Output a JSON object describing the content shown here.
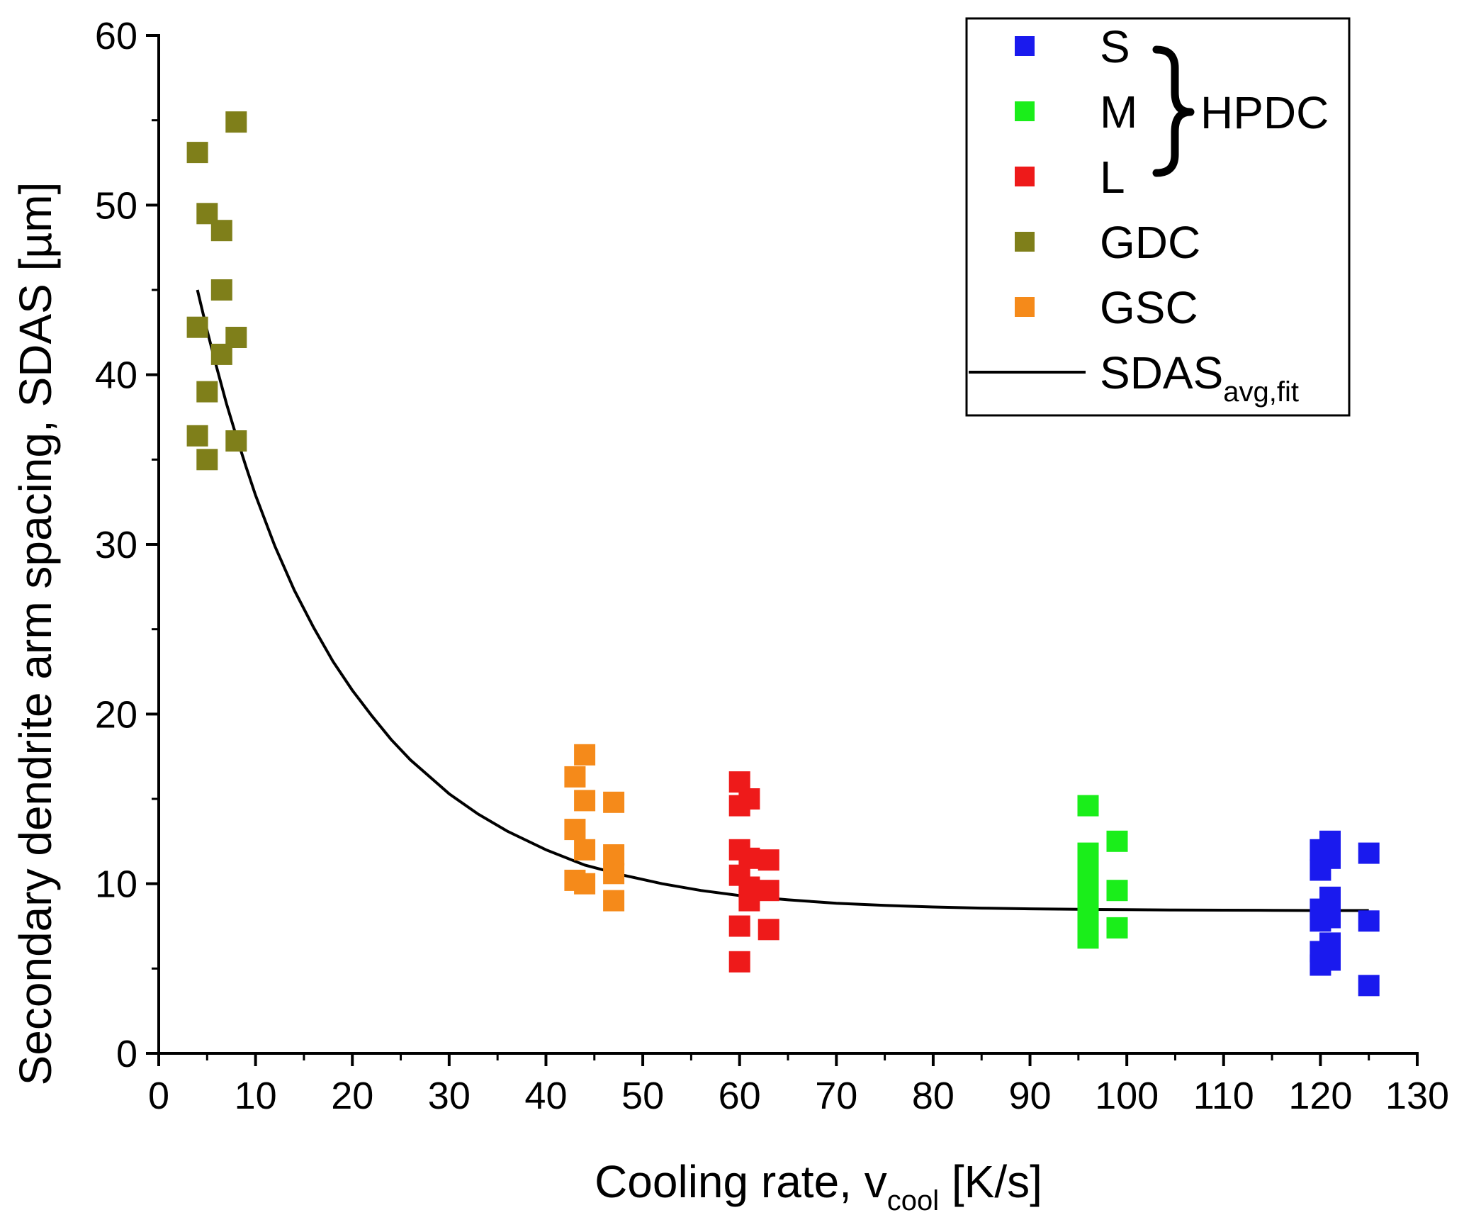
{
  "chart_data": {
    "type": "scatter",
    "title": "",
    "xlabel": {
      "main": "Cooling rate, v",
      "sub": "cool",
      "unit": " [K/s]"
    },
    "ylabel": "Secondary dendrite arm spacing, SDAS [µm]",
    "xlim": [
      0,
      130
    ],
    "ylim": [
      0,
      60
    ],
    "x_ticks": [
      0,
      10,
      20,
      30,
      40,
      50,
      60,
      70,
      80,
      90,
      100,
      110,
      120,
      130
    ],
    "y_ticks": [
      0,
      10,
      20,
      30,
      40,
      50,
      60
    ],
    "x_tick_labels": [
      "0",
      "10",
      "20",
      "30",
      "40",
      "50",
      "60",
      "70",
      "80",
      "90",
      "100",
      "110",
      "120",
      "130"
    ],
    "y_tick_labels": [
      "0",
      "10",
      "20",
      "30",
      "40",
      "50",
      "60"
    ],
    "grid": false,
    "legend_position": "top-right",
    "series": [
      {
        "name": "S",
        "color": "#1a1aee",
        "marker": "square",
        "points": [
          [
            120,
            12.0
          ],
          [
            121,
            12.5
          ],
          [
            121,
            11.5
          ],
          [
            120,
            10.8
          ],
          [
            121,
            9.2
          ],
          [
            120,
            8.5
          ],
          [
            121,
            8.0
          ],
          [
            120,
            7.8
          ],
          [
            121,
            6.5
          ],
          [
            120,
            6.0
          ],
          [
            121,
            5.5
          ],
          [
            120,
            5.2
          ],
          [
            125,
            11.8
          ],
          [
            125,
            7.8
          ],
          [
            125,
            4.0
          ]
        ]
      },
      {
        "name": "M",
        "color": "#1aee1a",
        "marker": "square",
        "points": [
          [
            96,
            14.6
          ],
          [
            96,
            11.8
          ],
          [
            96,
            10.8
          ],
          [
            96,
            9.8
          ],
          [
            96,
            8.8
          ],
          [
            96,
            7.8
          ],
          [
            96,
            6.8
          ],
          [
            99,
            12.5
          ],
          [
            99,
            9.6
          ],
          [
            99,
            7.4
          ]
        ]
      },
      {
        "name": "L",
        "color": "#ee1a1a",
        "marker": "square",
        "points": [
          [
            60,
            16.0
          ],
          [
            60,
            14.6
          ],
          [
            61,
            15.0
          ],
          [
            60,
            12.0
          ],
          [
            61,
            11.5
          ],
          [
            60,
            10.5
          ],
          [
            61,
            9.8
          ],
          [
            61,
            9.0
          ],
          [
            60,
            7.5
          ],
          [
            60,
            5.4
          ],
          [
            63,
            11.4
          ],
          [
            63,
            9.6
          ],
          [
            63,
            7.3
          ]
        ]
      },
      {
        "name": "GDC",
        "color": "#7f7f1a",
        "marker": "square",
        "points": [
          [
            8,
            54.9
          ],
          [
            4,
            53.1
          ],
          [
            5,
            49.5
          ],
          [
            6.5,
            48.5
          ],
          [
            6.5,
            45.0
          ],
          [
            4,
            42.8
          ],
          [
            8,
            42.2
          ],
          [
            6.5,
            41.2
          ],
          [
            5,
            39.0
          ],
          [
            4,
            36.4
          ],
          [
            8,
            36.1
          ],
          [
            5,
            35.0
          ]
        ]
      },
      {
        "name": "GSC",
        "color": "#f58a1a",
        "marker": "square",
        "points": [
          [
            44,
            17.6
          ],
          [
            43,
            16.3
          ],
          [
            44,
            14.9
          ],
          [
            47,
            14.8
          ],
          [
            43,
            13.2
          ],
          [
            44,
            12.0
          ],
          [
            47,
            11.7
          ],
          [
            47,
            10.6
          ],
          [
            43,
            10.2
          ],
          [
            44,
            10.0
          ],
          [
            47,
            9.0
          ]
        ]
      }
    ],
    "fit": {
      "name": "SDAS",
      "sub": "avg,fit",
      "color": "#000000",
      "x": [
        4,
        5,
        6,
        7,
        8,
        9,
        10,
        12,
        14,
        16,
        18,
        20,
        22,
        24,
        26,
        28,
        30,
        33,
        36,
        40,
        44,
        48,
        52,
        56,
        60,
        65,
        70,
        75,
        80,
        85,
        90,
        95,
        100,
        105,
        110,
        115,
        120,
        125
      ],
      "y": [
        45.0,
        42.6,
        40.4,
        38.3,
        36.4,
        34.6,
        32.9,
        29.9,
        27.3,
        25.1,
        23.1,
        21.4,
        19.9,
        18.5,
        17.3,
        16.3,
        15.3,
        14.1,
        13.1,
        12.0,
        11.1,
        10.5,
        10.0,
        9.6,
        9.3,
        9.05,
        8.85,
        8.72,
        8.63,
        8.56,
        8.52,
        8.49,
        8.47,
        8.45,
        8.44,
        8.43,
        8.42,
        8.42
      ]
    },
    "annotations": [
      {
        "text": "HPDC",
        "groups": [
          "S",
          "M",
          "L"
        ]
      }
    ]
  }
}
